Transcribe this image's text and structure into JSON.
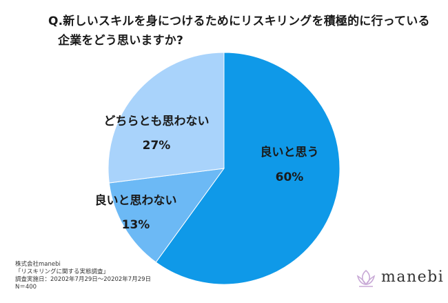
{
  "question": {
    "line1": "Q.新しいスキルを身につけるためにリスキリングを積極的に行っている",
    "line2": "企業をどう思いますか?"
  },
  "source": {
    "company": "株式会社manebi",
    "survey": "「リスキリングに関する実態調査」",
    "date": "調査実施日：20202年7月29日～20202年7月29日",
    "n": "N＝400"
  },
  "logo": {
    "text": "manebi"
  },
  "chart_data": {
    "type": "pie",
    "title": "Q.新しいスキルを身につけるためにリスキリングを積極的に行っている企業をどう思いますか?",
    "slices": [
      {
        "label": "良いと思う",
        "value": 60,
        "value_label": "60%",
        "color": "#0f99e8"
      },
      {
        "label": "良いと思わない",
        "value": 13,
        "value_label": "13%",
        "color": "#6cb9f5"
      },
      {
        "label": "どちらとも思わない",
        "value": 27,
        "value_label": "27%",
        "color": "#a9d3fb"
      }
    ],
    "start": "12 o'clock, clockwise",
    "legend": "none (labels on slices)"
  }
}
